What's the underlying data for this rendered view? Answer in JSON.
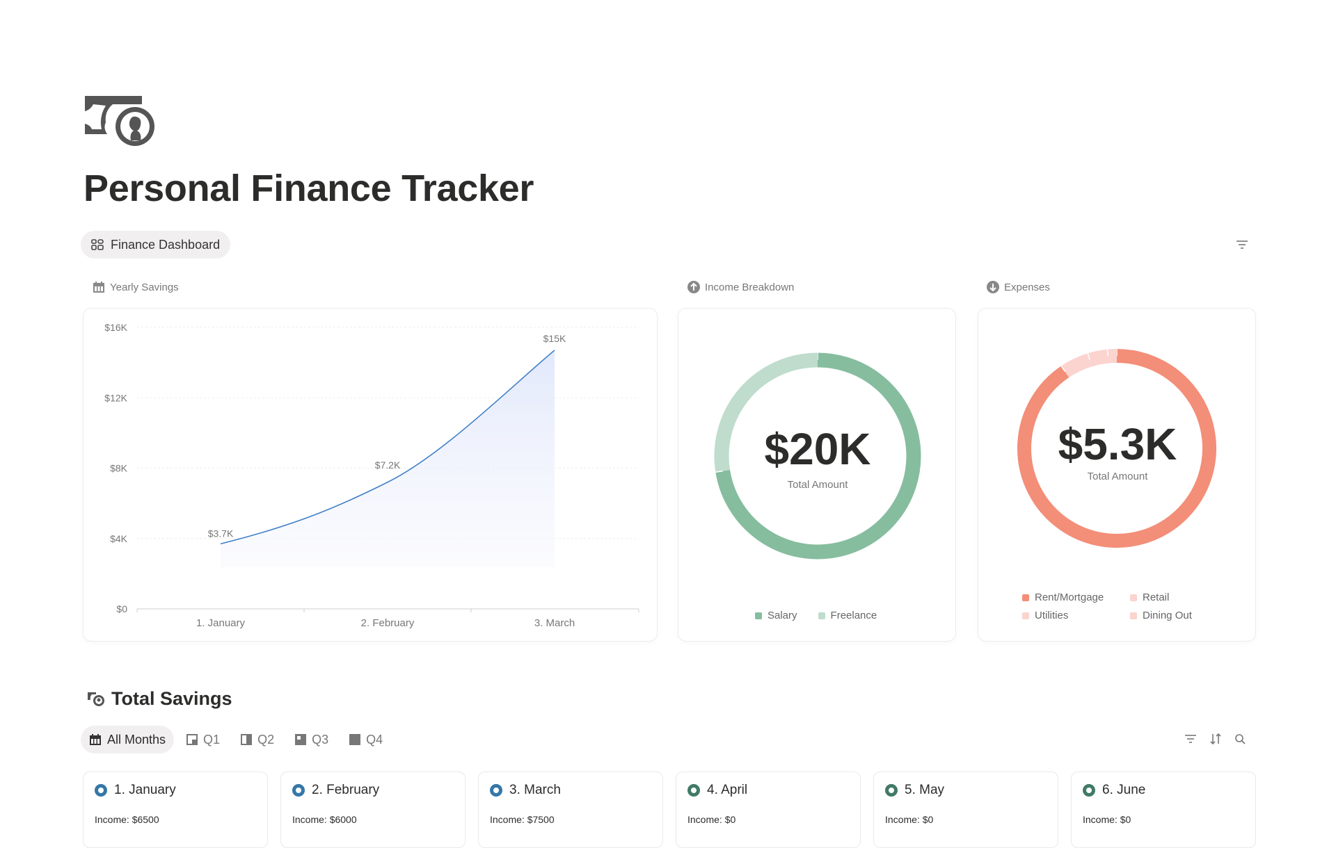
{
  "page": {
    "title": "Personal Finance Tracker",
    "icon": "money-bill-coin-icon"
  },
  "dashboard_view": {
    "label": "Finance Dashboard",
    "icon": "grid-icon",
    "filter_icon": "filter-icon"
  },
  "sections": {
    "yearly_savings": "Yearly Savings",
    "income": "Income Breakdown",
    "expenses": "Expenses"
  },
  "chart_data": [
    {
      "type": "area",
      "title": "Yearly Savings",
      "categories": [
        "1. January",
        "2. February",
        "3. March"
      ],
      "values": [
        3700,
        7200,
        14700
      ],
      "data_labels": [
        "$3.7K",
        "$7.2K",
        "$15K"
      ],
      "yticks": [
        "$0",
        "$4K",
        "$8K",
        "$12K",
        "$16K"
      ],
      "ylim": [
        0,
        16000
      ],
      "grid": true,
      "color": "#3f7fc6"
    },
    {
      "type": "pie",
      "title": "Income Breakdown",
      "center_value": "$20K",
      "center_label": "Total Amount",
      "categories": [
        "Salary",
        "Freelance"
      ],
      "values": [
        14500,
        5500
      ],
      "colors": [
        "#86bd9f",
        "#bfdccd"
      ],
      "legend": "bottom"
    },
    {
      "type": "pie",
      "title": "Expenses",
      "center_value": "$5.3K",
      "center_label": "Total Amount",
      "categories": [
        "Rent/Mortgage",
        "Retail",
        "Utilities",
        "Dining Out"
      ],
      "values": [
        4800,
        250,
        170,
        80
      ],
      "colors": [
        "#f38e78",
        "#fbd3cf",
        "#fbd3cf",
        "#fbd3cf"
      ],
      "legend": "bottom"
    }
  ],
  "total_savings": {
    "title": "Total Savings",
    "tabs": [
      {
        "label": "All Months",
        "active": true
      },
      {
        "label": "Q1"
      },
      {
        "label": "Q2"
      },
      {
        "label": "Q3"
      },
      {
        "label": "Q4"
      }
    ],
    "tools": [
      "filter-icon",
      "sort-icon",
      "search-icon"
    ],
    "months": [
      {
        "name": "1. January",
        "income": "Income: $6500",
        "color": "#3577a8"
      },
      {
        "name": "2. February",
        "income": "Income: $6000",
        "color": "#3577a8"
      },
      {
        "name": "3. March",
        "income": "Income: $7500",
        "color": "#3577a8"
      },
      {
        "name": "4. April",
        "income": "Income: $0",
        "color": "#417a66"
      },
      {
        "name": "5. May",
        "income": "Income: $0",
        "color": "#417a66"
      },
      {
        "name": "6. June",
        "income": "Income: $0",
        "color": "#417a66"
      }
    ]
  }
}
